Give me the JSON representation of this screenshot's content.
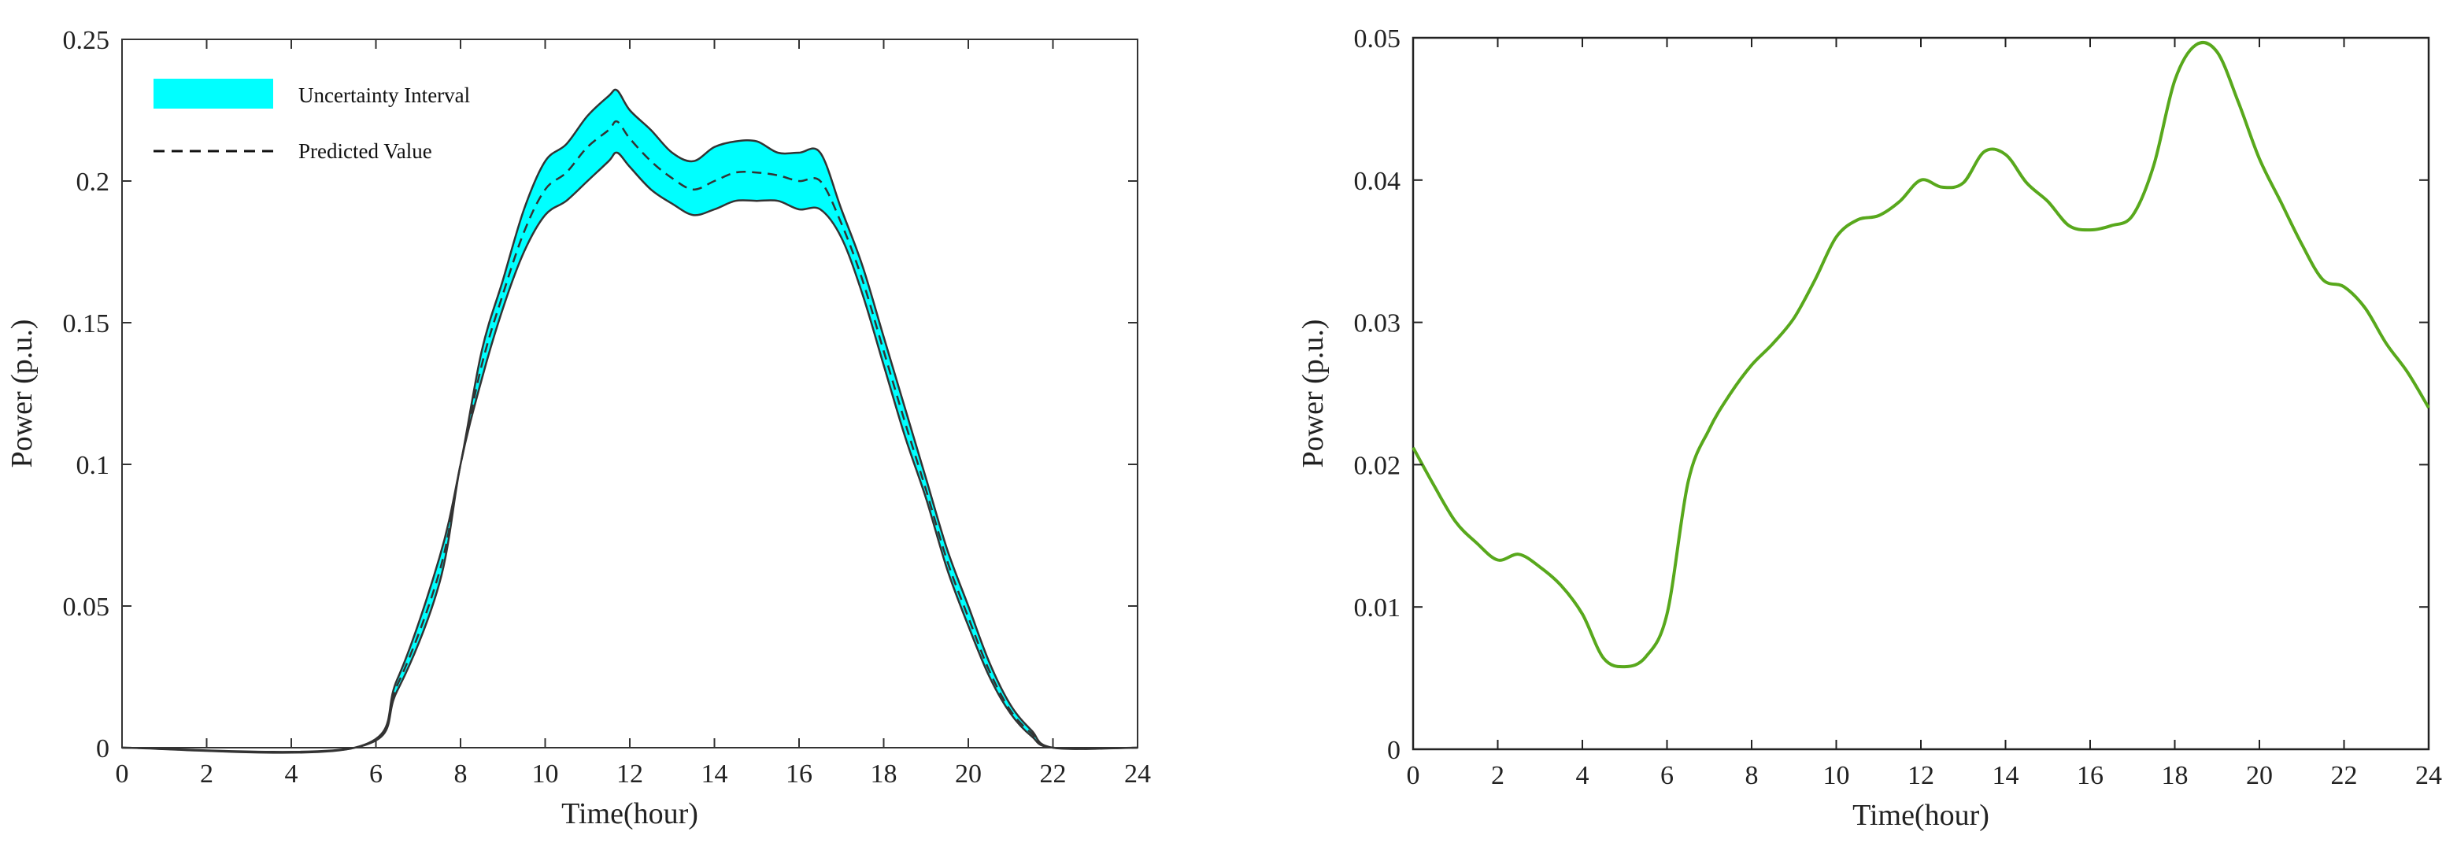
{
  "chart_data": [
    {
      "type": "area",
      "xlabel": "Time(hour)",
      "ylabel": "Power (p.u.)",
      "xlim": [
        0,
        24
      ],
      "ylim": [
        0,
        0.25
      ],
      "xticks": [
        0,
        2,
        4,
        6,
        8,
        10,
        12,
        14,
        16,
        18,
        20,
        22,
        24
      ],
      "yticks": [
        0,
        0.05,
        0.1,
        0.15,
        0.2,
        0.25
      ],
      "xtick_labels": [
        "0",
        "2",
        "4",
        "6",
        "8",
        "10",
        "12",
        "14",
        "16",
        "18",
        "20",
        "22",
        "24"
      ],
      "ytick_labels": [
        "0",
        "0.05",
        "0.1",
        "0.15",
        "0.2",
        "0.25"
      ],
      "grid": false,
      "legend_position": "top-left",
      "colors": {
        "band": "#00ffff",
        "band_edge": "#333333",
        "predicted": "#333333"
      },
      "x": [
        0,
        5.5,
        6.5,
        7.5,
        8,
        8.5,
        9,
        9.5,
        10,
        10.5,
        11,
        11.5,
        11.7,
        12,
        12.5,
        13,
        13.5,
        14,
        14.5,
        15,
        15.5,
        16,
        16.5,
        17,
        17.5,
        18,
        18.5,
        19,
        19.5,
        20,
        20.5,
        21,
        21.5,
        22,
        24
      ],
      "series": [
        {
          "name": "Uncertainty Interval",
          "upper": [
            0,
            0,
            0.024,
            0.067,
            0.1,
            0.14,
            0.165,
            0.19,
            0.207,
            0.213,
            0.223,
            0.23,
            0.232,
            0.225,
            0.218,
            0.21,
            0.207,
            0.212,
            0.214,
            0.214,
            0.21,
            0.21,
            0.21,
            0.19,
            0.17,
            0.145,
            0.12,
            0.095,
            0.07,
            0.05,
            0.03,
            0.015,
            0.006,
            0,
            0
          ],
          "lower": [
            0,
            0,
            0.02,
            0.058,
            0.1,
            0.13,
            0.155,
            0.175,
            0.188,
            0.193,
            0.2,
            0.207,
            0.21,
            0.205,
            0.197,
            0.192,
            0.188,
            0.19,
            0.193,
            0.193,
            0.193,
            0.19,
            0.19,
            0.18,
            0.16,
            0.135,
            0.11,
            0.088,
            0.063,
            0.043,
            0.025,
            0.012,
            0.004,
            0,
            0
          ]
        },
        {
          "name": "Predicted Value",
          "values": [
            0,
            0,
            0.022,
            0.062,
            0.1,
            0.135,
            0.16,
            0.182,
            0.197,
            0.203,
            0.212,
            0.218,
            0.221,
            0.215,
            0.207,
            0.201,
            0.197,
            0.2,
            0.203,
            0.203,
            0.202,
            0.2,
            0.2,
            0.185,
            0.165,
            0.14,
            0.115,
            0.091,
            0.066,
            0.046,
            0.027,
            0.013,
            0.005,
            0,
            0
          ]
        }
      ]
    },
    {
      "type": "line",
      "xlabel": "Time(hour)",
      "ylabel": "Power (p.u.)",
      "xlim": [
        0,
        24
      ],
      "ylim": [
        0,
        0.05
      ],
      "xticks": [
        0,
        2,
        4,
        6,
        8,
        10,
        12,
        14,
        16,
        18,
        20,
        22,
        24
      ],
      "yticks": [
        0,
        0.01,
        0.02,
        0.03,
        0.04,
        0.05
      ],
      "xtick_labels": [
        "0",
        "2",
        "4",
        "6",
        "8",
        "10",
        "12",
        "14",
        "16",
        "18",
        "20",
        "22",
        "24"
      ],
      "ytick_labels": [
        "0",
        "0.01",
        "0.02",
        "0.03",
        "0.04",
        "0.05"
      ],
      "grid": false,
      "colors": {
        "line": "#58a81c"
      },
      "x": [
        0,
        0.5,
        1,
        1.5,
        2,
        2.5,
        3,
        3.5,
        4,
        4.5,
        5,
        5.5,
        6,
        6.5,
        7,
        7.5,
        8,
        8.5,
        9,
        9.5,
        10,
        10.5,
        11,
        11.5,
        12,
        12.5,
        13,
        13.5,
        14,
        14.5,
        15,
        15.5,
        16,
        16.5,
        17,
        17.5,
        18,
        18.5,
        19,
        19.5,
        20,
        20.5,
        21,
        21.5,
        22,
        22.5,
        23,
        23.5,
        24
      ],
      "values": [
        0.0212,
        0.0185,
        0.016,
        0.0145,
        0.0133,
        0.0137,
        0.0128,
        0.0115,
        0.0095,
        0.0064,
        0.0058,
        0.0065,
        0.0095,
        0.0188,
        0.0225,
        0.025,
        0.027,
        0.0285,
        0.0303,
        0.033,
        0.036,
        0.0372,
        0.0375,
        0.0385,
        0.04,
        0.0395,
        0.0398,
        0.042,
        0.0418,
        0.0398,
        0.0385,
        0.0368,
        0.0365,
        0.0368,
        0.0375,
        0.041,
        0.047,
        0.0495,
        0.049,
        0.0455,
        0.0415,
        0.0385,
        0.0355,
        0.033,
        0.0325,
        0.031,
        0.0285,
        0.0265,
        0.024
      ]
    }
  ],
  "legend": {
    "band_label": "Uncertainty Interval",
    "line_label": "Predicted Value"
  }
}
